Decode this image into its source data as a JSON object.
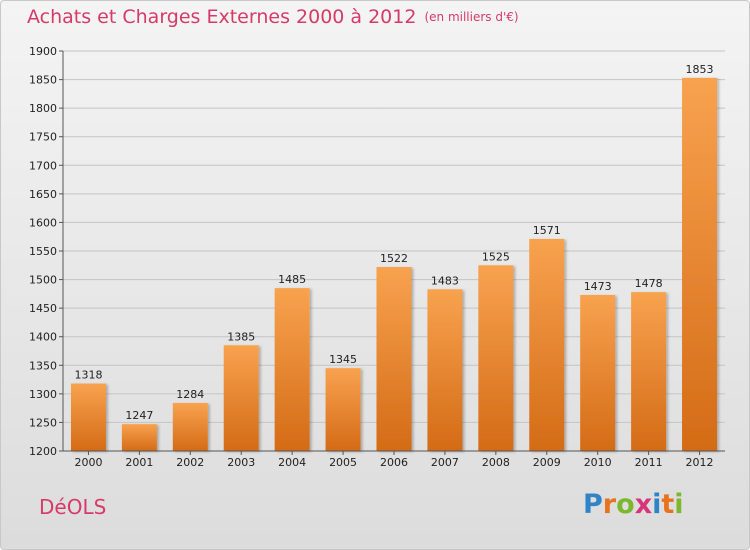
{
  "header": {
    "title": "Achats et Charges Externes 2000 à 2012",
    "unit": "(en milliers d'€)"
  },
  "footer": {
    "town": "DéOLS",
    "logo": "Proxiti"
  },
  "colors": {
    "title": "#d63a6b",
    "bar_light": "#f8a24f",
    "bar_dark": "#d46b16"
  },
  "chart_data": {
    "type": "bar",
    "title": "Achats et Charges Externes 2000 à 2012",
    "subtitle": "(en milliers d'€)",
    "categories": [
      "2000",
      "2001",
      "2002",
      "2003",
      "2004",
      "2005",
      "2006",
      "2007",
      "2008",
      "2009",
      "2010",
      "2011",
      "2012"
    ],
    "values": [
      1318,
      1247,
      1284,
      1385,
      1485,
      1345,
      1522,
      1483,
      1525,
      1571,
      1473,
      1478,
      1853
    ],
    "ylim": [
      1200,
      1900
    ],
    "yticks": [
      1200,
      1250,
      1300,
      1350,
      1400,
      1450,
      1500,
      1550,
      1600,
      1650,
      1700,
      1750,
      1800,
      1850,
      1900
    ],
    "grid": true,
    "xlabel": "",
    "ylabel": ""
  }
}
